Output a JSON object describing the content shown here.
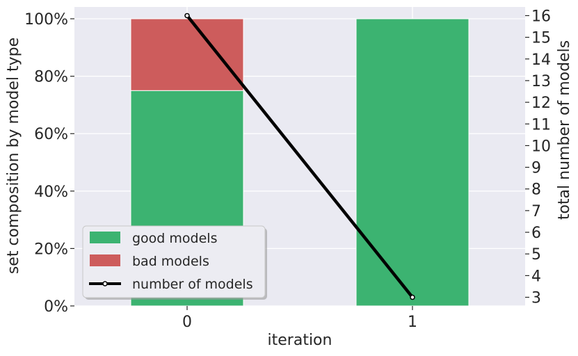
{
  "chart_data": {
    "type": "bar",
    "categories": [
      "0",
      "1"
    ],
    "xlabel": "iteration",
    "ylabel": "set composition by model type",
    "ylabel_right": "total number of models",
    "ylim": [
      0,
      100
    ],
    "y_ticks": [
      0,
      20,
      40,
      60,
      80,
      100
    ],
    "y_tick_labels": [
      "0%",
      "20%",
      "40%",
      "60%",
      "80%",
      "100%"
    ],
    "ylim_right": [
      2.6,
      16.4
    ],
    "y_right_ticks": [
      3,
      4,
      5,
      6,
      7,
      8,
      9,
      10,
      11,
      12,
      13,
      14,
      15,
      16
    ],
    "y_right_tick_labels": [
      "3",
      "4",
      "5",
      "6",
      "7",
      "8",
      "9",
      "10",
      "11",
      "12",
      "13",
      "14",
      "15",
      "16"
    ],
    "stacked": true,
    "grid": true,
    "legend_position": "bottom-left",
    "series": [
      {
        "name": "good models",
        "type": "bar",
        "axis": "left",
        "color": "#3cb371",
        "values": [
          75,
          100
        ]
      },
      {
        "name": "bad models",
        "type": "bar",
        "axis": "left",
        "color": "#cd5c5c",
        "values": [
          25,
          0
        ]
      },
      {
        "name": "number of models",
        "type": "line",
        "axis": "right",
        "color": "#000000",
        "values": [
          16,
          3
        ]
      }
    ]
  }
}
